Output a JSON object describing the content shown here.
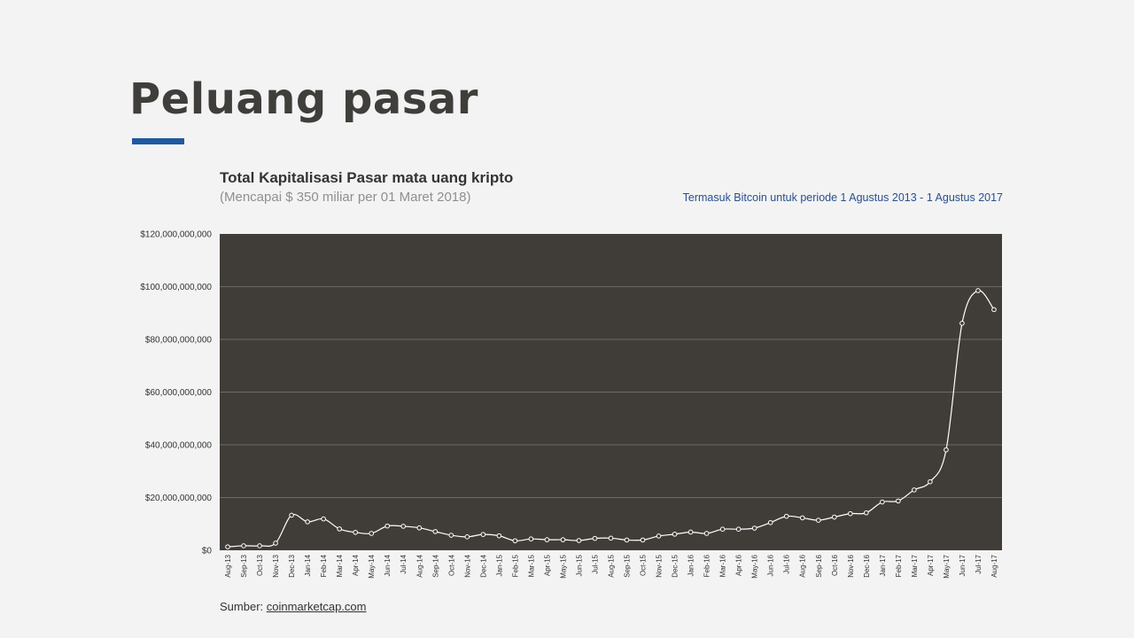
{
  "slide": {
    "title": "Peluang pasar",
    "accent_color": "#1f5aa0"
  },
  "chart_header": {
    "title": "Total Kapitalisasi  Pasar mata uang kripto",
    "subtitle": "(Mencapai $ 350 miliar per 01 Maret 2018)",
    "note": "Termasuk Bitcoin  untuk  periode 1 Agustus 2013  - 1 Agustus 2017"
  },
  "source": {
    "label": "Sumber:",
    "link_text": "coinmarketcap.com"
  },
  "chart_data": {
    "type": "line",
    "plot_background": "#403d39",
    "line_color": "#ffffff",
    "grid": true,
    "ylim": [
      0,
      120000000000
    ],
    "yticks": [
      0,
      20000000000,
      40000000000,
      60000000000,
      80000000000,
      100000000000,
      120000000000
    ],
    "ytick_labels": [
      "$0",
      "$20,000,000,000",
      "$40,000,000,000",
      "$60,000,000,000",
      "$80,000,000,000",
      "$100,000,000,000",
      "$120,000,000,000"
    ],
    "categories": [
      "Aug-13",
      "Sep-13",
      "Oct-13",
      "Nov-13",
      "Dec-13",
      "Jan-14",
      "Feb-14",
      "Mar-14",
      "Apr-14",
      "May-14",
      "Jun-14",
      "Jul-14",
      "Aug-14",
      "Sep-14",
      "Oct-14",
      "Nov-14",
      "Dec-14",
      "Jan-15",
      "Feb-15",
      "Mar-15",
      "Apr-15",
      "May-15",
      "Jun-15",
      "Jul-15",
      "Aug-15",
      "Sep-15",
      "Oct-15",
      "Nov-15",
      "Dec-15",
      "Jan-16",
      "Feb-16",
      "Mar-16",
      "Apr-16",
      "May-16",
      "Jun-16",
      "Jul-16",
      "Aug-16",
      "Sep-16",
      "Oct-16",
      "Nov-16",
      "Dec-16",
      "Jan-17",
      "Feb-17",
      "Mar-17",
      "Apr-17",
      "May-17",
      "Jun-17",
      "Jul-17",
      "Aug-17"
    ],
    "values": [
      1300000000,
      1700000000,
      1700000000,
      2700000000,
      13300000000,
      10800000000,
      11900000000,
      8100000000,
      6800000000,
      6400000000,
      9200000000,
      9100000000,
      8500000000,
      7100000000,
      5700000000,
      5100000000,
      6000000000,
      5500000000,
      3600000000,
      4300000000,
      4000000000,
      4000000000,
      3700000000,
      4500000000,
      4600000000,
      3900000000,
      3900000000,
      5400000000,
      6100000000,
      6900000000,
      6400000000,
      8000000000,
      8000000000,
      8400000000,
      10500000000,
      12900000000,
      12300000000,
      11400000000,
      12600000000,
      13900000000,
      14200000000,
      18300000000,
      18700000000,
      22900000000,
      26000000000,
      38100000000,
      86100000000,
      98500000000,
      91300000000
    ]
  }
}
